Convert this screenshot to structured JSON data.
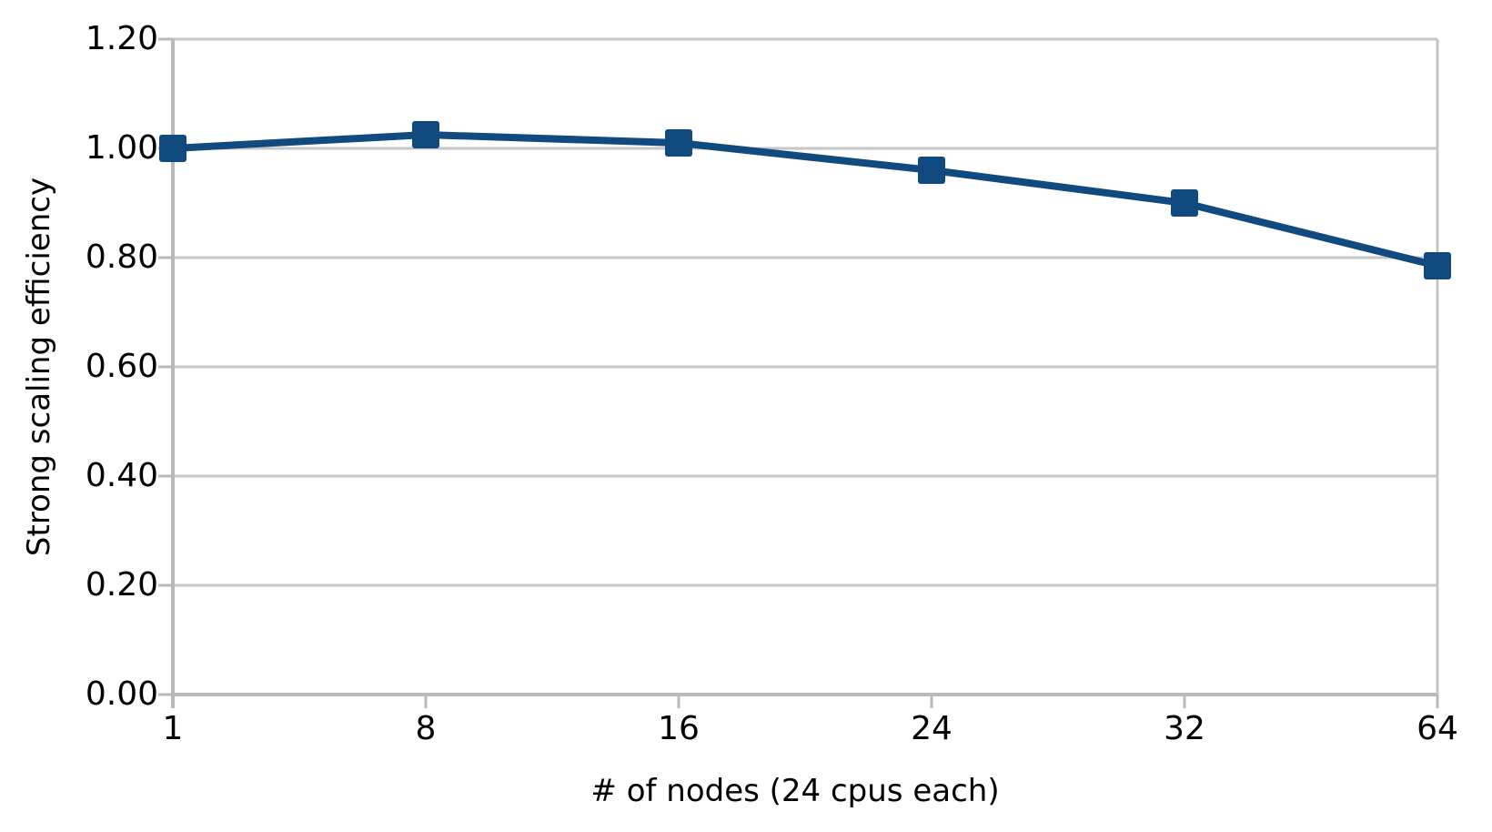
{
  "chart_data": {
    "type": "line",
    "categories": [
      "1",
      "8",
      "16",
      "24",
      "32",
      "64"
    ],
    "values": [
      1.0,
      1.025,
      1.01,
      0.96,
      0.9,
      0.785
    ],
    "series": [
      {
        "name": "Strong scaling efficiency",
        "values": [
          1.0,
          1.025,
          1.01,
          0.96,
          0.9,
          0.785
        ]
      }
    ],
    "title": "",
    "xlabel": "# of nodes (24 cpus each)",
    "ylabel": "Strong scaling efficiency",
    "ylim": [
      0.0,
      1.2
    ],
    "y_ticks": [
      "0.00",
      "0.20",
      "0.40",
      "0.60",
      "0.80",
      "1.00",
      "1.20"
    ],
    "grid": "horizontal gridlines on",
    "legend": "none",
    "marker": "square",
    "colors": {
      "line": "#114a7e",
      "marker": "#114a7e",
      "gridline": "#c6c6c6",
      "axis": "#b9b9b9",
      "text": "#000000",
      "background": "#ffffff"
    }
  }
}
